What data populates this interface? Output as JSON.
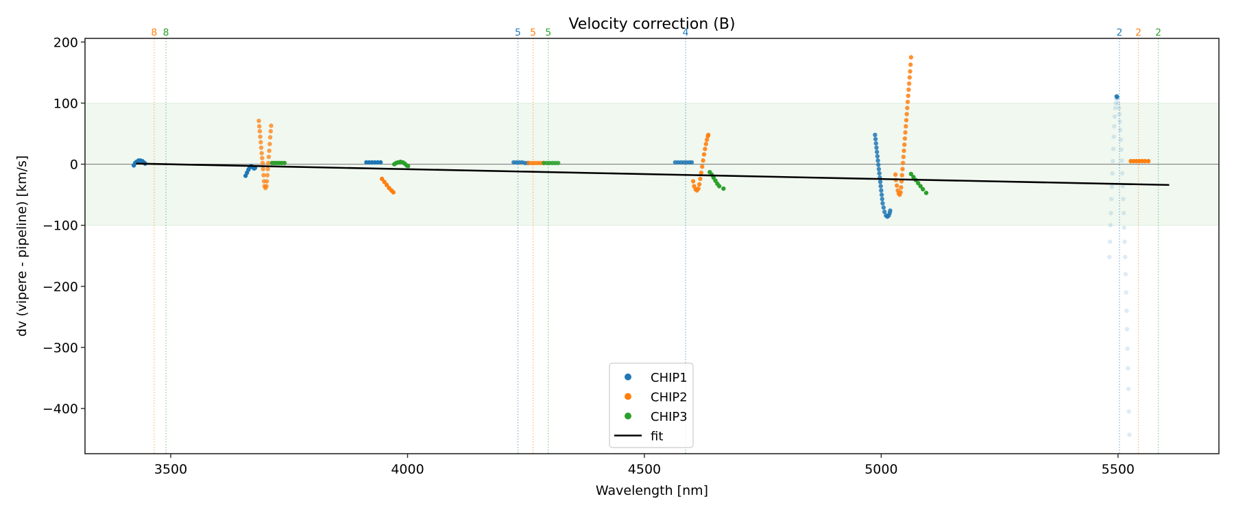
{
  "chart_data": {
    "type": "scatter",
    "title": "Velocity correction (B)",
    "xlabel": "Wavelength [nm]",
    "ylabel": "dv (vipere - pipeline) [km/s]",
    "xlim": [
      3319,
      5713
    ],
    "ylim": [
      -474,
      206
    ],
    "xticks": [
      3500,
      4000,
      4500,
      5000,
      5500
    ],
    "xtick_labels": [
      "3500",
      "4000",
      "4500",
      "5000",
      "5500"
    ],
    "yticks": [
      200,
      100,
      0,
      -100,
      -200,
      -300,
      -400
    ],
    "ytick_labels": [
      "200",
      "100",
      "0",
      "−100",
      "−200",
      "−300",
      "−400"
    ],
    "grid": false,
    "band": {
      "ymin": -100,
      "ymax": 100,
      "color": "#2ca02c",
      "opacity": 0.07
    },
    "zero_line": 0,
    "colors": {
      "CHIP1": "#1f77b4",
      "CHIP2": "#ff7f0e",
      "CHIP3": "#2ca02c",
      "fit": "#000000"
    },
    "legend": {
      "placement": "lower-center",
      "entries": [
        {
          "label": "CHIP1",
          "kind": "marker",
          "color": "#1f77b4"
        },
        {
          "label": "CHIP2",
          "kind": "marker",
          "color": "#ff7f0e"
        },
        {
          "label": "CHIP3",
          "kind": "marker",
          "color": "#2ca02c"
        },
        {
          "label": "fit",
          "kind": "line",
          "color": "#000000"
        }
      ]
    },
    "order_markers": [
      {
        "label": "8",
        "chip": "CHIP2",
        "x": 3465
      },
      {
        "label": "8",
        "chip": "CHIP3",
        "x": 3490
      },
      {
        "label": "5",
        "chip": "CHIP1",
        "x": 4233
      },
      {
        "label": "5",
        "chip": "CHIP2",
        "x": 4265
      },
      {
        "label": "5",
        "chip": "CHIP3",
        "x": 4297
      },
      {
        "label": "4",
        "chip": "CHIP1",
        "x": 4587
      },
      {
        "label": "2",
        "chip": "CHIP1",
        "x": 5503
      },
      {
        "label": "2",
        "chip": "CHIP2",
        "x": 5543
      },
      {
        "label": "2",
        "chip": "CHIP3",
        "x": 5585
      }
    ],
    "fit": {
      "x": [
        3427,
        5608
      ],
      "y": [
        1,
        -34
      ]
    },
    "series": [
      {
        "name": "CHIP1",
        "order": 8,
        "alpha": 1.0,
        "points": [
          [
            3422,
            -2
          ],
          [
            3425,
            2
          ],
          [
            3428,
            4
          ],
          [
            3432,
            6
          ],
          [
            3436,
            6
          ],
          [
            3440,
            5
          ],
          [
            3443,
            3
          ],
          [
            3446,
            1
          ]
        ]
      },
      {
        "name": "CHIP2",
        "order": 7,
        "alpha": 0.75,
        "points": [
          [
            3686,
            71
          ],
          [
            3687,
            62
          ],
          [
            3688,
            54
          ],
          [
            3689,
            45
          ],
          [
            3690,
            36
          ],
          [
            3691,
            27
          ],
          [
            3692,
            18
          ],
          [
            3693,
            10
          ],
          [
            3694,
            2
          ],
          [
            3695,
            -8
          ],
          [
            3696,
            -18
          ],
          [
            3697,
            -28
          ],
          [
            3698,
            -36
          ],
          [
            3700,
            -39
          ],
          [
            3702,
            -36
          ],
          [
            3703,
            -28
          ],
          [
            3704,
            -18
          ],
          [
            3705,
            -8
          ],
          [
            3706,
            2
          ],
          [
            3707,
            12
          ],
          [
            3708,
            22
          ],
          [
            3709,
            33
          ],
          [
            3710,
            44
          ],
          [
            3711,
            54
          ],
          [
            3712,
            63
          ]
        ]
      },
      {
        "name": "CHIP1",
        "order": 7,
        "alpha": 1.0,
        "points": [
          [
            3658,
            -19
          ],
          [
            3661,
            -14
          ],
          [
            3664,
            -9
          ],
          [
            3667,
            -5
          ],
          [
            3670,
            -3
          ],
          [
            3673,
            -5
          ],
          [
            3676,
            -7
          ],
          [
            3678,
            -6
          ]
        ]
      },
      {
        "name": "CHIP3",
        "order": 7,
        "alpha": 1.0,
        "points": [
          [
            3714,
            2
          ],
          [
            3719,
            2
          ],
          [
            3724,
            2
          ],
          [
            3729,
            2
          ],
          [
            3734,
            2
          ],
          [
            3740,
            2
          ]
        ]
      },
      {
        "name": "CHIP1",
        "order": 6,
        "alpha": 1.0,
        "points": [
          [
            3913,
            3
          ],
          [
            3919,
            3
          ],
          [
            3925,
            3
          ],
          [
            3931,
            3
          ],
          [
            3937,
            3
          ],
          [
            3943,
            3
          ]
        ]
      },
      {
        "name": "CHIP2",
        "order": 6,
        "alpha": 1.0,
        "points": [
          [
            3946,
            -24
          ],
          [
            3951,
            -29
          ],
          [
            3956,
            -34
          ],
          [
            3961,
            -39
          ],
          [
            3966,
            -43
          ],
          [
            3970,
            -46
          ]
        ]
      },
      {
        "name": "CHIP3",
        "order": 6,
        "alpha": 1.0,
        "points": [
          [
            3972,
            0
          ],
          [
            3976,
            2
          ],
          [
            3980,
            3
          ],
          [
            3985,
            4
          ],
          [
            3990,
            3
          ],
          [
            3994,
            1
          ],
          [
            3998,
            -2
          ],
          [
            4001,
            -3
          ]
        ]
      },
      {
        "name": "CHIP1",
        "order": 5,
        "alpha": 0.85,
        "points": [
          [
            4224,
            3
          ],
          [
            4230,
            3
          ],
          [
            4236,
            3
          ],
          [
            4242,
            3
          ],
          [
            4248,
            2
          ],
          [
            4254,
            2
          ]
        ]
      },
      {
        "name": "CHIP2",
        "order": 5,
        "alpha": 0.85,
        "points": [
          [
            4256,
            2
          ],
          [
            4262,
            2
          ],
          [
            4268,
            2
          ],
          [
            4274,
            2
          ],
          [
            4280,
            2
          ],
          [
            4286,
            2
          ]
        ]
      },
      {
        "name": "CHIP3",
        "order": 5,
        "alpha": 0.85,
        "points": [
          [
            4288,
            2
          ],
          [
            4294,
            2
          ],
          [
            4300,
            2
          ],
          [
            4306,
            2
          ],
          [
            4312,
            2
          ],
          [
            4318,
            2
          ]
        ]
      },
      {
        "name": "CHIP1",
        "order": 4,
        "alpha": 0.85,
        "points": [
          [
            4565,
            3
          ],
          [
            4571,
            3
          ],
          [
            4577,
            3
          ],
          [
            4583,
            3
          ],
          [
            4589,
            3
          ],
          [
            4595,
            3
          ],
          [
            4600,
            3
          ]
        ]
      },
      {
        "name": "CHIP2",
        "order": 4,
        "alpha": 0.9,
        "points": [
          [
            4603,
            -28
          ],
          [
            4605,
            -36
          ],
          [
            4608,
            -41
          ],
          [
            4611,
            -43
          ],
          [
            4614,
            -40
          ],
          [
            4616,
            -33
          ],
          [
            4618,
            -24
          ],
          [
            4620,
            -14
          ],
          [
            4622,
            -4
          ],
          [
            4624,
            6
          ],
          [
            4626,
            16
          ],
          [
            4628,
            25
          ],
          [
            4630,
            33
          ],
          [
            4632,
            40
          ],
          [
            4634,
            46
          ],
          [
            4635,
            48
          ]
        ]
      },
      {
        "name": "CHIP3",
        "order": 4,
        "alpha": 1.0,
        "points": [
          [
            4638,
            -13
          ],
          [
            4642,
            -17
          ],
          [
            4646,
            -22
          ],
          [
            4650,
            -27
          ],
          [
            4654,
            -32
          ],
          [
            4658,
            -36
          ],
          [
            4667,
            -40
          ]
        ]
      },
      {
        "name": "CHIP1",
        "order": 3,
        "alpha": 0.85,
        "points": [
          [
            4987,
            48
          ],
          [
            4988,
            41
          ],
          [
            4989,
            34
          ],
          [
            4990,
            27
          ],
          [
            4991,
            20
          ],
          [
            4992,
            13
          ],
          [
            4993,
            6
          ],
          [
            4994,
            -1
          ],
          [
            4995,
            -8
          ],
          [
            4996,
            -15
          ],
          [
            4997,
            -22
          ],
          [
            4998,
            -29
          ],
          [
            4999,
            -36
          ],
          [
            5000,
            -43
          ],
          [
            5001,
            -50
          ],
          [
            5002,
            -57
          ],
          [
            5003,
            -64
          ],
          [
            5005,
            -71
          ],
          [
            5007,
            -78
          ],
          [
            5010,
            -84
          ],
          [
            5013,
            -86
          ],
          [
            5016,
            -84
          ],
          [
            5018,
            -80
          ],
          [
            5019,
            -76
          ]
        ]
      },
      {
        "name": "CHIP2",
        "order": 3,
        "alpha": 0.85,
        "points": [
          [
            5030,
            -17
          ],
          [
            5031,
            -26
          ],
          [
            5033,
            -35
          ],
          [
            5035,
            -43
          ],
          [
            5037,
            -48
          ],
          [
            5039,
            -50
          ],
          [
            5041,
            -46
          ],
          [
            5042,
            -38
          ],
          [
            5043,
            -28
          ],
          [
            5044,
            -18
          ],
          [
            5045,
            -8
          ],
          [
            5046,
            2
          ],
          [
            5047,
            12
          ],
          [
            5048,
            22
          ],
          [
            5049,
            32
          ],
          [
            5050,
            42
          ],
          [
            5051,
            52
          ],
          [
            5052,
            62
          ],
          [
            5053,
            72
          ],
          [
            5054,
            82
          ],
          [
            5055,
            92
          ],
          [
            5056,
            102
          ],
          [
            5057,
            112
          ],
          [
            5058,
            122
          ],
          [
            5059,
            132
          ],
          [
            5060,
            142
          ],
          [
            5061,
            152
          ],
          [
            5062,
            163
          ],
          [
            5063,
            175
          ]
        ]
      },
      {
        "name": "CHIP3",
        "order": 3,
        "alpha": 1.0,
        "points": [
          [
            5063,
            -16
          ],
          [
            5068,
            -21
          ],
          [
            5073,
            -26
          ],
          [
            5078,
            -31
          ],
          [
            5083,
            -36
          ],
          [
            5088,
            -41
          ],
          [
            5095,
            -47
          ]
        ]
      },
      {
        "name": "CHIP1",
        "order": 2,
        "alpha": 0.15,
        "points": [
          [
            5482,
            -152
          ],
          [
            5483,
            -127
          ],
          [
            5484,
            -100
          ],
          [
            5485,
            -80
          ],
          [
            5486,
            -57
          ],
          [
            5487,
            -37
          ],
          [
            5488,
            -15
          ],
          [
            5489,
            5
          ],
          [
            5490,
            25
          ],
          [
            5491,
            45
          ],
          [
            5492,
            62
          ],
          [
            5493,
            78
          ],
          [
            5494,
            92
          ],
          [
            5495,
            100
          ],
          [
            5496,
            107
          ],
          [
            5497,
            110
          ],
          [
            5498,
            112
          ],
          [
            5499,
            108
          ],
          [
            5500,
            100
          ],
          [
            5502,
            92
          ],
          [
            5503,
            82
          ],
          [
            5504,
            70
          ],
          [
            5505,
            56
          ],
          [
            5506,
            40
          ],
          [
            5507,
            24
          ],
          [
            5508,
            6
          ],
          [
            5509,
            -15
          ],
          [
            5510,
            -36
          ],
          [
            5511,
            -57
          ],
          [
            5512,
            -80
          ],
          [
            5513,
            -104
          ],
          [
            5514,
            -127
          ],
          [
            5515,
            -152
          ],
          [
            5516,
            -180
          ],
          [
            5517,
            -210
          ],
          [
            5518,
            -240
          ],
          [
            5519,
            -270
          ],
          [
            5520,
            -302
          ],
          [
            5521,
            -334
          ],
          [
            5522,
            -368
          ],
          [
            5523,
            -405
          ],
          [
            5524,
            -443
          ]
        ]
      },
      {
        "name": "CHIP1",
        "order": 2,
        "alpha": 0.8,
        "points": [
          [
            5497,
            111
          ],
          [
            5498,
            110
          ]
        ]
      },
      {
        "name": "CHIP2",
        "order": 2,
        "alpha": 1.0,
        "points": [
          [
            5527,
            5
          ],
          [
            5533,
            5
          ],
          [
            5539,
            5
          ],
          [
            5545,
            5
          ],
          [
            5551,
            5
          ],
          [
            5557,
            5
          ],
          [
            5564,
            5
          ]
        ]
      }
    ]
  }
}
